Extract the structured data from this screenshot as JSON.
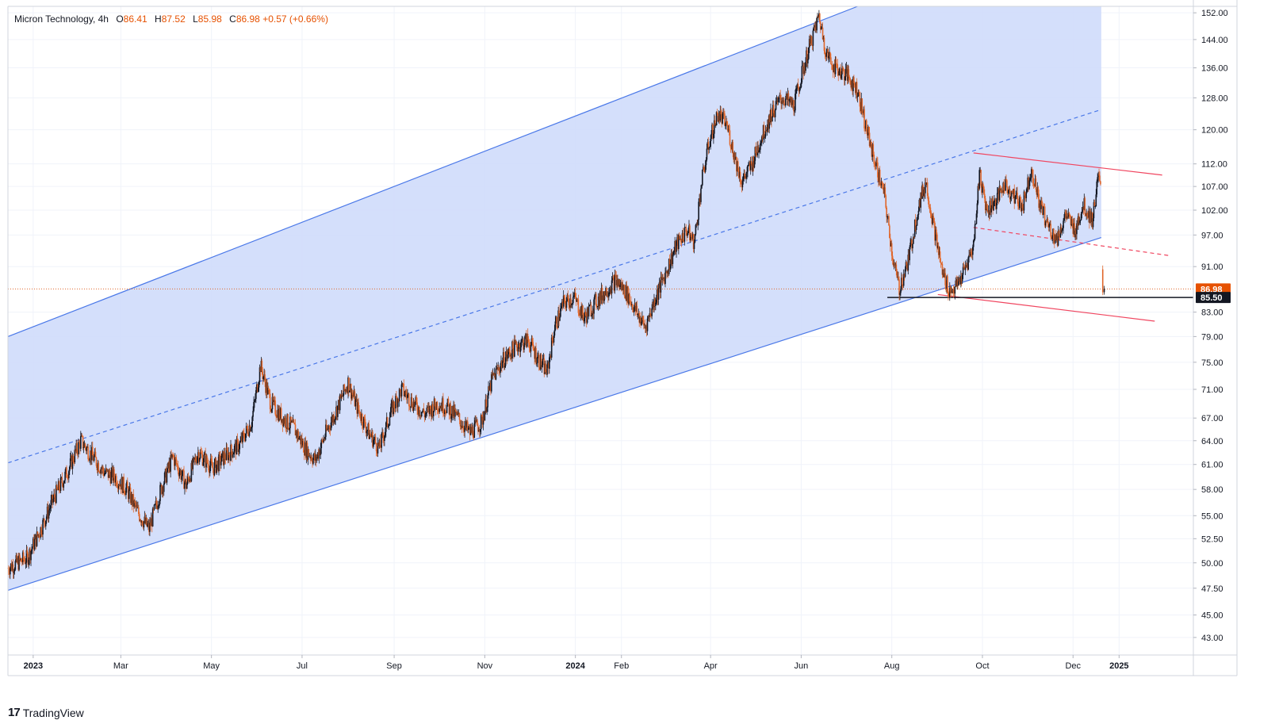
{
  "legend": {
    "symbol": "Micron Technology",
    "interval": "4h",
    "open_label": "O",
    "open": "86.41",
    "high_label": "H",
    "high": "87.52",
    "low_label": "L",
    "low": "85.98",
    "close_label": "C",
    "close": "86.98",
    "change": "+0.57",
    "change_pct": "(+0.66%)"
  },
  "footer": {
    "brand": "TradingView",
    "logo": "tradingview-logo"
  },
  "colors": {
    "channel_fill": "#cfdcfb",
    "channel_line": "#4a78e8",
    "wedge_line": "#f0455f",
    "candle_up": "#131722",
    "candle_down": "#e0672b",
    "price_line": "#e0672b",
    "price_badge": "#e65100",
    "support_badge": "#131722"
  },
  "chart_data": {
    "type": "candlestick",
    "title": "",
    "y_scale": "log",
    "ylim": [
      41.5,
      154
    ],
    "xlim": [
      "2022-12-15",
      "2025-02-20"
    ],
    "y_ticks": [
      "152.00",
      "144.00",
      "136.00",
      "128.00",
      "120.00",
      "112.00",
      "107.00",
      "102.00",
      "97.00",
      "91.00",
      "83.00",
      "79.00",
      "75.00",
      "71.00",
      "67.00",
      "64.00",
      "61.00",
      "58.00",
      "55.00",
      "52.50",
      "50.00",
      "47.50",
      "45.00",
      "43.00"
    ],
    "x_ticks": [
      {
        "label": "2023",
        "date": "2023-01-01",
        "bold": true
      },
      {
        "label": "Mar",
        "date": "2023-03-01",
        "bold": false
      },
      {
        "label": "May",
        "date": "2023-05-01",
        "bold": false
      },
      {
        "label": "Jul",
        "date": "2023-07-01",
        "bold": false
      },
      {
        "label": "Sep",
        "date": "2023-09-01",
        "bold": false
      },
      {
        "label": "Nov",
        "date": "2023-11-01",
        "bold": false
      },
      {
        "label": "2024",
        "date": "2024-01-01",
        "bold": true
      },
      {
        "label": "Feb",
        "date": "2024-02-01",
        "bold": false
      },
      {
        "label": "Apr",
        "date": "2024-04-01",
        "bold": false
      },
      {
        "label": "Jun",
        "date": "2024-06-01",
        "bold": false
      },
      {
        "label": "Aug",
        "date": "2024-08-01",
        "bold": false
      },
      {
        "label": "Oct",
        "date": "2024-10-01",
        "bold": false
      },
      {
        "label": "Dec",
        "date": "2024-12-01",
        "bold": false
      },
      {
        "label": "2025",
        "date": "2025-01-01",
        "bold": true
      }
    ],
    "price_path": [
      [
        "2022-12-15",
        49.5
      ],
      [
        "2022-12-28",
        50.5
      ],
      [
        "2023-01-06",
        53.5
      ],
      [
        "2023-01-15",
        57.0
      ],
      [
        "2023-01-25",
        60.5
      ],
      [
        "2023-02-02",
        64.0
      ],
      [
        "2023-02-10",
        62.0
      ],
      [
        "2023-02-18",
        60.0
      ],
      [
        "2023-02-25",
        59.5
      ],
      [
        "2023-03-05",
        58.0
      ],
      [
        "2023-03-12",
        55.5
      ],
      [
        "2023-03-20",
        53.5
      ],
      [
        "2023-03-28",
        58.0
      ],
      [
        "2023-04-05",
        62.0
      ],
      [
        "2023-04-14",
        58.5
      ],
      [
        "2023-04-22",
        62.5
      ],
      [
        "2023-05-02",
        60.5
      ],
      [
        "2023-05-10",
        62.0
      ],
      [
        "2023-05-20",
        63.5
      ],
      [
        "2023-05-28",
        66.5
      ],
      [
        "2023-06-03",
        74.5
      ],
      [
        "2023-06-10",
        69.0
      ],
      [
        "2023-06-18",
        67.0
      ],
      [
        "2023-06-26",
        65.5
      ],
      [
        "2023-07-03",
        63.0
      ],
      [
        "2023-07-10",
        61.5
      ],
      [
        "2023-07-17",
        65.0
      ],
      [
        "2023-07-25",
        68.5
      ],
      [
        "2023-08-01",
        72.0
      ],
      [
        "2023-08-07",
        68.5
      ],
      [
        "2023-08-15",
        65.0
      ],
      [
        "2023-08-22",
        63.0
      ],
      [
        "2023-08-30",
        68.0
      ],
      [
        "2023-09-06",
        71.0
      ],
      [
        "2023-09-14",
        69.0
      ],
      [
        "2023-09-22",
        67.5
      ],
      [
        "2023-09-30",
        69.0
      ],
      [
        "2023-10-07",
        68.5
      ],
      [
        "2023-10-14",
        67.0
      ],
      [
        "2023-10-22",
        65.0
      ],
      [
        "2023-10-30",
        66.5
      ],
      [
        "2023-11-06",
        72.5
      ],
      [
        "2023-11-14",
        75.5
      ],
      [
        "2023-11-22",
        77.5
      ],
      [
        "2023-11-30",
        78.5
      ],
      [
        "2023-12-07",
        75.5
      ],
      [
        "2023-12-13",
        73.5
      ],
      [
        "2023-12-18",
        80.5
      ],
      [
        "2023-12-24",
        84.5
      ],
      [
        "2023-12-31",
        85.5
      ],
      [
        "2024-01-07",
        82.0
      ],
      [
        "2024-01-14",
        84.5
      ],
      [
        "2024-01-21",
        86.5
      ],
      [
        "2024-01-28",
        88.5
      ],
      [
        "2024-02-04",
        86.5
      ],
      [
        "2024-02-11",
        83.0
      ],
      [
        "2024-02-17",
        80.5
      ],
      [
        "2024-02-24",
        85.5
      ],
      [
        "2024-03-02",
        90.0
      ],
      [
        "2024-03-09",
        95.0
      ],
      [
        "2024-03-16",
        98.0
      ],
      [
        "2024-03-21",
        95.5
      ],
      [
        "2024-03-26",
        108.0
      ],
      [
        "2024-03-31",
        117.0
      ],
      [
        "2024-04-06",
        124.0
      ],
      [
        "2024-04-12",
        121.0
      ],
      [
        "2024-04-17",
        114.0
      ],
      [
        "2024-04-22",
        108.0
      ],
      [
        "2024-04-29",
        112.0
      ],
      [
        "2024-05-05",
        118.0
      ],
      [
        "2024-05-12",
        124.0
      ],
      [
        "2024-05-19",
        128.0
      ],
      [
        "2024-05-27",
        126.0
      ],
      [
        "2024-06-02",
        135.0
      ],
      [
        "2024-06-08",
        144.0
      ],
      [
        "2024-06-13",
        151.0
      ],
      [
        "2024-06-18",
        140.0
      ],
      [
        "2024-06-24",
        136.0
      ],
      [
        "2024-07-02",
        134.0
      ],
      [
        "2024-07-09",
        130.0
      ],
      [
        "2024-07-15",
        120.0
      ],
      [
        "2024-07-21",
        112.0
      ],
      [
        "2024-07-27",
        105.0
      ],
      [
        "2024-08-02",
        92.0
      ],
      [
        "2024-08-06",
        87.0
      ],
      [
        "2024-08-12",
        92.0
      ],
      [
        "2024-08-19",
        103.0
      ],
      [
        "2024-08-24",
        108.0
      ],
      [
        "2024-08-29",
        99.0
      ],
      [
        "2024-09-04",
        90.0
      ],
      [
        "2024-09-09",
        86.5
      ],
      [
        "2024-09-14",
        87.5
      ],
      [
        "2024-09-20",
        91.0
      ],
      [
        "2024-09-25",
        95.0
      ],
      [
        "2024-09-29",
        110.0
      ],
      [
        "2024-10-04",
        102.0
      ],
      [
        "2024-10-10",
        104.0
      ],
      [
        "2024-10-16",
        107.5
      ],
      [
        "2024-10-22",
        105.0
      ],
      [
        "2024-10-28",
        103.0
      ],
      [
        "2024-11-03",
        111.0
      ],
      [
        "2024-11-08",
        104.0
      ],
      [
        "2024-11-14",
        99.0
      ],
      [
        "2024-11-20",
        96.0
      ],
      [
        "2024-11-26",
        101.0
      ],
      [
        "2024-12-02",
        98.0
      ],
      [
        "2024-12-08",
        103.0
      ],
      [
        "2024-12-14",
        100.0
      ],
      [
        "2024-12-18",
        109.0
      ],
      [
        "2024-12-20",
        105.0
      ]
    ],
    "gap_candles": [
      {
        "date": "2024-12-21",
        "open": 90.5,
        "high": 91.2,
        "low": 85.9,
        "close": 86.4
      },
      {
        "date": "2024-12-22",
        "open": 86.41,
        "high": 87.52,
        "low": 85.98,
        "close": 86.98
      }
    ],
    "last_price": 86.98,
    "last_price_label": "86.98",
    "support_level": 85.5,
    "support_label": "85.50",
    "channel": {
      "lower": [
        [
          "2022-12-15",
          47.3
        ],
        [
          "2024-12-20",
          96.5
        ]
      ],
      "upper": [
        [
          "2022-12-15",
          79.0
        ],
        [
          "2024-07-09",
          154.0
        ]
      ],
      "mid_dashed": [
        [
          "2022-12-15",
          61.2
        ],
        [
          "2024-12-20",
          125.0
        ]
      ],
      "fill_right_edge": "2024-12-20"
    },
    "wedge": {
      "top": [
        [
          "2024-09-25",
          114.5
        ],
        [
          "2025-01-30",
          109.5
        ]
      ],
      "mid_dashed": [
        [
          "2024-09-25",
          98.5
        ],
        [
          "2025-02-05",
          93.0
        ]
      ],
      "bottom": [
        [
          "2024-09-01",
          86.0
        ],
        [
          "2025-01-25",
          81.5
        ]
      ]
    },
    "support_segment": [
      [
        "2024-07-29",
        85.5
      ],
      [
        "2025-02-20",
        85.5
      ]
    ]
  }
}
